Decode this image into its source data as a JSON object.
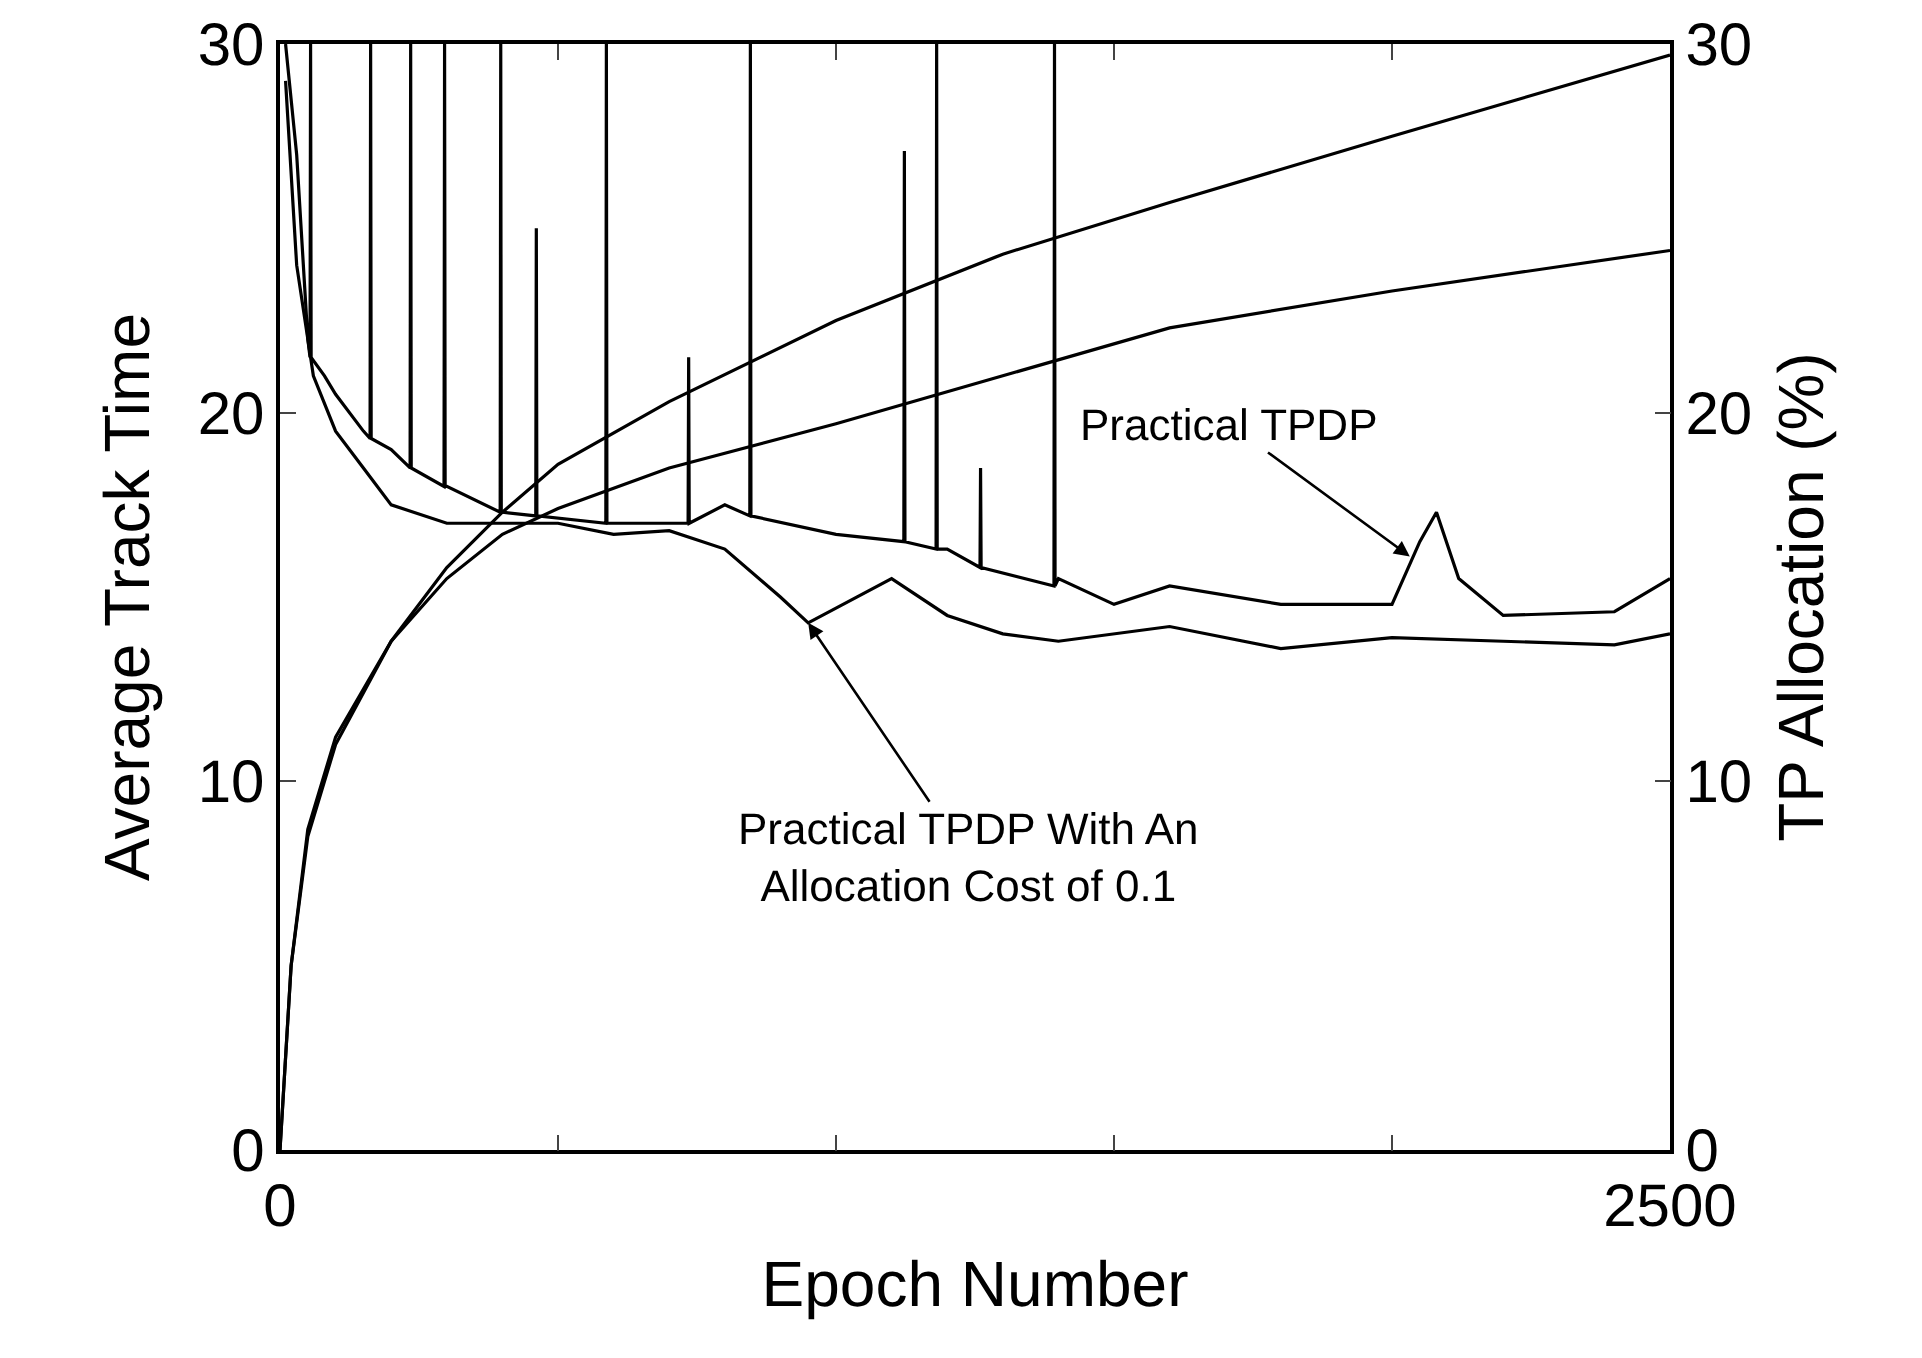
{
  "chart_data": {
    "type": "line",
    "xlabel": "Epoch Number",
    "ylabel": "Average Track Time",
    "y2label": "TP Allocation (%)",
    "xlim": [
      0,
      2500
    ],
    "xticks": [
      0,
      {
        "value": 500,
        "label": null
      },
      {
        "value": 1000,
        "label": null
      },
      {
        "value": 1500,
        "label": null
      },
      {
        "value": 2000,
        "label": null
      },
      2500
    ],
    "ylim": [
      0,
      30
    ],
    "yticks": [
      0,
      10,
      20,
      30
    ],
    "y2lim": [
      0,
      30
    ],
    "y2ticks": [
      0,
      10,
      20,
      30
    ],
    "grid": false,
    "marker": "none",
    "line_style": "solid",
    "series": [
      {
        "color": "#000000",
        "x": [
          10,
          30,
          50,
          54,
          55,
          56,
          80,
          100,
          150,
          162,
          163,
          164,
          200,
          234,
          235,
          236,
          295,
          296,
          297,
          300,
          396,
          397,
          398,
          400,
          460,
          461,
          462,
          586,
          587,
          588,
          600,
          734,
          735,
          736,
          800,
          845,
          846,
          847,
          1000,
          1122,
          1123,
          1124,
          1180,
          1181,
          1182,
          1200,
          1259,
          1260,
          1261,
          1392,
          1393,
          1394,
          1400,
          1500,
          1600,
          1800,
          2000,
          2050,
          2080,
          2120,
          2200,
          2400,
          2500
        ],
        "values": [
          30,
          27,
          22,
          21.5,
          30,
          21.5,
          21,
          20.5,
          19.5,
          19.3,
          30,
          19.3,
          19,
          18.5,
          30,
          18.5,
          18,
          30,
          18,
          18,
          17.3,
          30,
          17.3,
          17.3,
          17.2,
          25,
          17.2,
          17,
          30,
          17,
          17,
          17,
          21.5,
          17,
          17.5,
          17.2,
          30,
          17.2,
          16.7,
          16.5,
          27.1,
          16.5,
          16.3,
          30,
          16.3,
          16.3,
          15.8,
          18.5,
          15.8,
          15.3,
          30,
          15.3,
          15.5,
          14.8,
          15.3,
          14.8,
          14.8,
          16.5,
          17.3,
          15.5,
          14.5,
          14.6,
          15.5
        ]
      },
      {
        "color": "#000000",
        "x": [
          10,
          30,
          60,
          100,
          150,
          200,
          300,
          400,
          500,
          600,
          700,
          800,
          900,
          950,
          1000,
          1100,
          1200,
          1300,
          1400,
          1600,
          1800,
          2000,
          2200,
          2400,
          2500
        ],
        "values": [
          29,
          24,
          21,
          19.5,
          18.5,
          17.5,
          17,
          17,
          17,
          16.7,
          16.8,
          16.3,
          15,
          14.3,
          14.7,
          15.5,
          14.5,
          14,
          13.8,
          14.2,
          13.6,
          13.9,
          13.8,
          13.7,
          14
        ]
      },
      {
        "color": "#000000",
        "axis": "y2",
        "x": [
          0,
          20,
          50,
          100,
          200,
          300,
          400,
          500,
          700,
          1000,
          1300,
          1600,
          2000,
          2500
        ],
        "values": [
          0,
          5,
          8.5,
          11,
          13.8,
          15.8,
          17.3,
          18.6,
          20.3,
          22.5,
          24.3,
          25.7,
          27.5,
          29.7
        ]
      },
      {
        "color": "#000000",
        "axis": "y2",
        "x": [
          0,
          20,
          50,
          100,
          200,
          300,
          400,
          500,
          700,
          1000,
          1300,
          1600,
          2000,
          2500
        ],
        "values": [
          0,
          5,
          8.7,
          11.2,
          13.8,
          15.5,
          16.7,
          17.4,
          18.5,
          19.7,
          21,
          22.3,
          23.3,
          24.4
        ]
      }
    ],
    "annotations": [
      {
        "text": "Practical TPDP",
        "x": 2032,
        "y": 16.1
      },
      {
        "text": "Practical TPDP With An\nAllocation Cost of 0.1",
        "x": 950,
        "y": 14.3
      }
    ]
  }
}
